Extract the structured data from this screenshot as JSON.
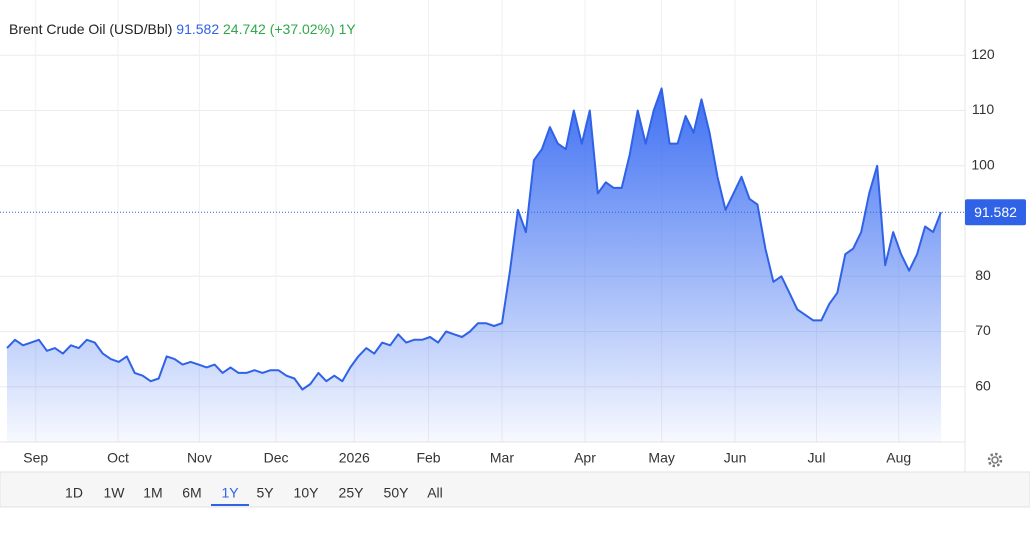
{
  "chart_data": {
    "type": "area",
    "title": "Brent Crude Oil (USD/Bbl)",
    "change": "24.742",
    "change_pct": "(+37.02%)",
    "color": "#2f62e6",
    "values": [
      67,
      68.5,
      67.5,
      68,
      68.5,
      66.5,
      67,
      66,
      67.5,
      67,
      68.5,
      68,
      66,
      65,
      64.5,
      65.5,
      62.5,
      62,
      61,
      61.5,
      65.5,
      65,
      64,
      64.5,
      64,
      63.5,
      64,
      62.5,
      63.5,
      62.5,
      62.5,
      63,
      62.5,
      63,
      63,
      62,
      61.5,
      59.5,
      60.5,
      62.5,
      61,
      62,
      61,
      63.5,
      65.5,
      67,
      66,
      68,
      67.5,
      69.5,
      68,
      68.5,
      68.5,
      69,
      68,
      70,
      69.5,
      69,
      70,
      71.5,
      71.5,
      71,
      71.5,
      81,
      92,
      88,
      101,
      103,
      107,
      104,
      103,
      110,
      104,
      110,
      95,
      97,
      96,
      96,
      102,
      110,
      104,
      110,
      114,
      104,
      104,
      109,
      106,
      112,
      106,
      98,
      92,
      95,
      98,
      94,
      93,
      85,
      79,
      80,
      77,
      74,
      73,
      72,
      72,
      75,
      77,
      84,
      85,
      88,
      95,
      100,
      82,
      88,
      84,
      81,
      84,
      89,
      88,
      91.582
    ],
    "xlim": [
      0,
      120
    ],
    "xticks": [
      {
        "value": 3.6,
        "label": "Sep"
      },
      {
        "value": 13.9,
        "label": "Oct"
      },
      {
        "value": 24.1,
        "label": "Nov"
      },
      {
        "value": 33.7,
        "label": "Dec"
      },
      {
        "value": 43.5,
        "label": "2026"
      },
      {
        "value": 52.8,
        "label": "Feb"
      },
      {
        "value": 62,
        "label": "Mar"
      },
      {
        "value": 72.4,
        "label": "Apr"
      },
      {
        "value": 82,
        "label": "May"
      },
      {
        "value": 91.2,
        "label": "Jun"
      },
      {
        "value": 101.4,
        "label": "Jul"
      },
      {
        "value": 111.7,
        "label": "Aug"
      }
    ],
    "ylim": [
      50,
      130
    ],
    "yticks": [
      60,
      70,
      80,
      100,
      110,
      120
    ],
    "grid": true
  },
  "ui": {
    "ranges": [
      "1D",
      "1W",
      "1M",
      "6M",
      "1Y",
      "5Y",
      "10Y",
      "25Y",
      "50Y",
      "All"
    ],
    "selected": 4
  }
}
